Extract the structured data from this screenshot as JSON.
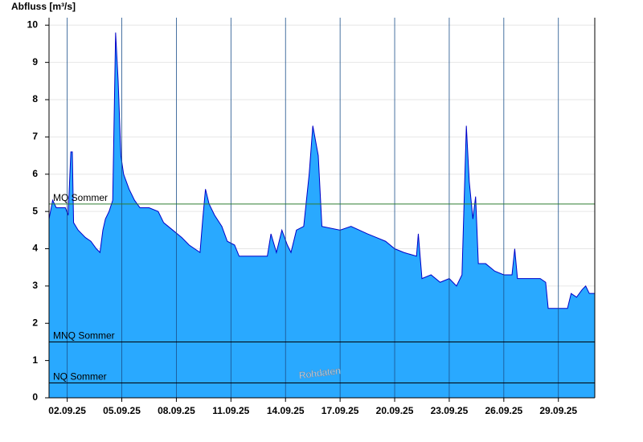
{
  "chart_data": {
    "type": "area",
    "y_label": "Abfluss [m³/s]",
    "x": [
      1.0,
      1.2,
      1.4,
      1.9,
      2.05,
      2.2,
      2.28,
      2.35,
      2.6,
      3.0,
      3.3,
      3.6,
      3.8,
      3.96,
      4.1,
      4.3,
      4.5,
      4.66,
      4.8,
      4.95,
      5.1,
      5.4,
      5.7,
      6.0,
      6.5,
      7.0,
      7.3,
      7.8,
      8.3,
      8.7,
      9.0,
      9.3,
      9.45,
      9.6,
      9.8,
      10.1,
      10.5,
      10.8,
      11.2,
      11.45,
      12.5,
      13.0,
      13.2,
      13.5,
      13.8,
      14.1,
      14.3,
      14.6,
      15.0,
      15.3,
      15.5,
      15.8,
      16.0,
      17.0,
      17.6,
      18.5,
      19.0,
      19.5,
      20.0,
      20.5,
      21.2,
      21.3,
      21.5,
      22.0,
      22.5,
      23.0,
      23.4,
      23.7,
      23.94,
      24.1,
      24.3,
      24.45,
      24.6,
      25.0,
      25.5,
      26.0,
      26.45,
      26.6,
      26.75,
      27.5,
      28.0,
      28.3,
      28.44,
      29.2,
      29.5,
      29.7,
      30.0,
      30.3,
      30.5,
      30.7,
      31.0
    ],
    "values": [
      4.8,
      5.3,
      5.1,
      5.1,
      4.9,
      6.6,
      6.6,
      4.7,
      4.5,
      4.3,
      4.2,
      4.0,
      3.9,
      4.5,
      4.8,
      5.0,
      5.3,
      9.8,
      8.5,
      6.5,
      6.0,
      5.6,
      5.3,
      5.1,
      5.1,
      5.0,
      4.7,
      4.5,
      4.3,
      4.1,
      4.0,
      3.9,
      4.8,
      5.6,
      5.2,
      4.9,
      4.6,
      4.2,
      4.1,
      3.8,
      3.8,
      3.8,
      4.4,
      3.9,
      4.5,
      4.1,
      3.9,
      4.5,
      4.6,
      6.0,
      7.3,
      6.5,
      4.6,
      4.5,
      4.6,
      4.4,
      4.3,
      4.2,
      4.0,
      3.9,
      3.8,
      4.4,
      3.2,
      3.3,
      3.1,
      3.2,
      3.0,
      3.3,
      7.3,
      5.8,
      4.8,
      5.4,
      3.6,
      3.6,
      3.4,
      3.3,
      3.3,
      4.0,
      3.2,
      3.2,
      3.2,
      3.1,
      2.4,
      2.4,
      2.4,
      2.8,
      2.7,
      2.9,
      3.0,
      2.8,
      2.8
    ],
    "fill_color": "#29a9ff",
    "line_color": "#0000c8",
    "xlim": [
      1.0,
      31.0
    ],
    "ylim": [
      0,
      10.2
    ],
    "xticks": [
      {
        "value": 2,
        "label": "02.09.25"
      },
      {
        "value": 5,
        "label": "05.09.25"
      },
      {
        "value": 8,
        "label": "08.09.25"
      },
      {
        "value": 11,
        "label": "11.09.25"
      },
      {
        "value": 14,
        "label": "14.09.25"
      },
      {
        "value": 17,
        "label": "17.09.25"
      },
      {
        "value": 20,
        "label": "20.09.25"
      },
      {
        "value": 23,
        "label": "23.09.25"
      },
      {
        "value": 26,
        "label": "26.09.25"
      },
      {
        "value": 29,
        "label": "29.09.25"
      }
    ],
    "yticks": [
      0,
      1,
      2,
      3,
      4,
      5,
      6,
      7,
      8,
      9,
      10
    ],
    "grid": true,
    "reference_lines": [
      {
        "label": "MQ Sommer",
        "value": 5.2,
        "color": "#2e7d32"
      },
      {
        "label": "MNQ Sommer",
        "value": 1.5,
        "color": "#000000"
      },
      {
        "label": "NQ Sommer",
        "value": 0.4,
        "color": "#000000"
      }
    ],
    "annotation": "Rohdaten"
  }
}
